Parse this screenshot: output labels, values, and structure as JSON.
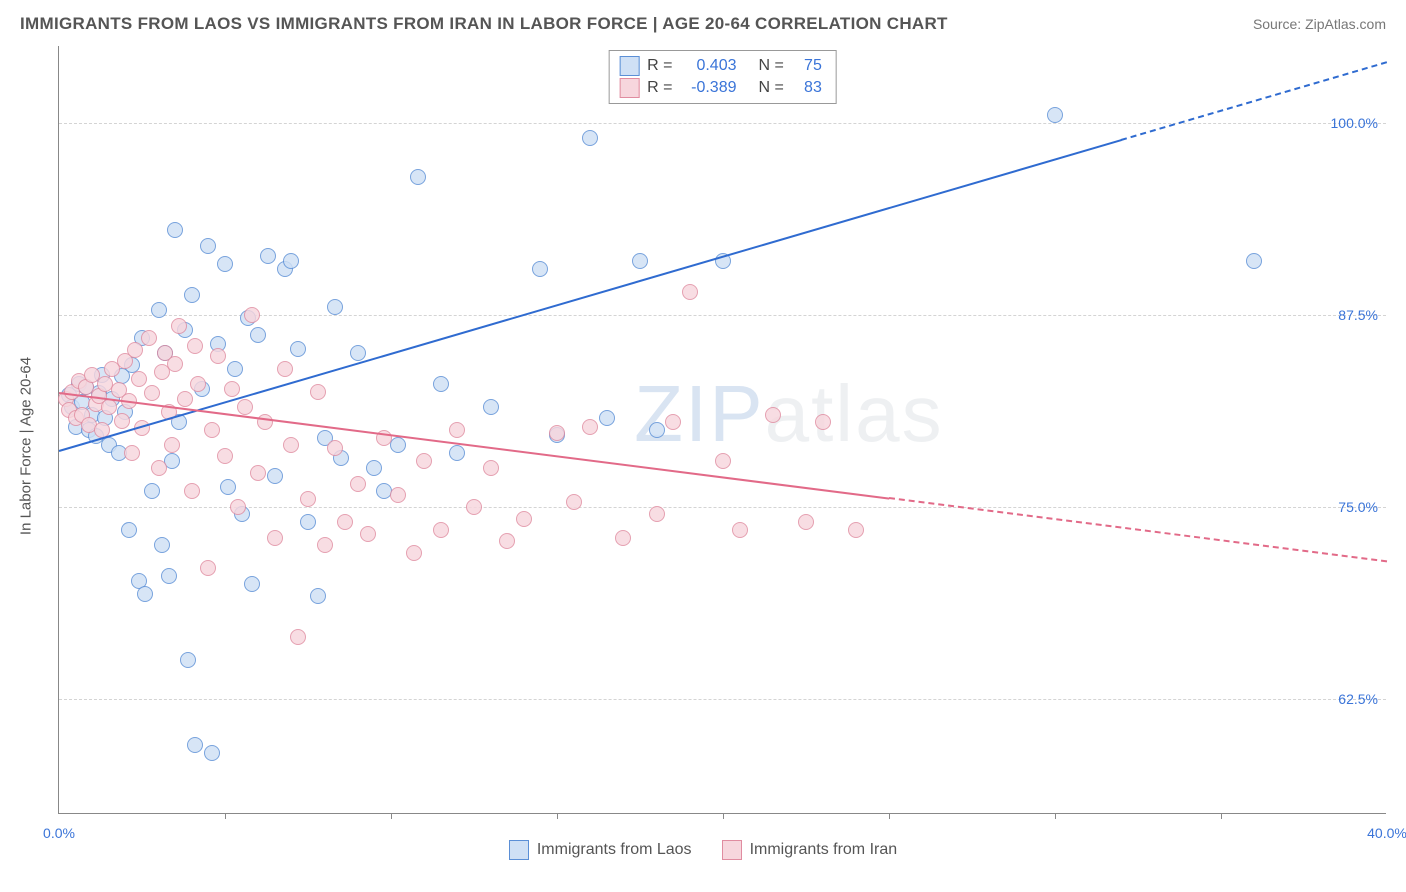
{
  "title": "IMMIGRANTS FROM LAOS VS IMMIGRANTS FROM IRAN IN LABOR FORCE | AGE 20-64 CORRELATION CHART",
  "source": "Source: ZipAtlas.com",
  "watermark": "ZIPatlas",
  "ylabel": "In Labor Force | Age 20-64",
  "chart": {
    "type": "scatter",
    "xlim": [
      0,
      40
    ],
    "ylim": [
      55,
      105
    ],
    "xticks": [
      0,
      40
    ],
    "xtick_labels": [
      "0.0%",
      "40.0%"
    ],
    "xtick_marks": [
      5,
      10,
      15,
      20,
      25,
      30,
      35
    ],
    "yticks": [
      62.5,
      75.0,
      87.5,
      100.0
    ],
    "ytick_labels": [
      "62.5%",
      "75.0%",
      "87.5%",
      "100.0%"
    ],
    "grid_color": "#d4d4d4",
    "axis_color": "#888888",
    "background": "#ffffff",
    "marker_radius": 8,
    "marker_stroke_width": 1.2,
    "line_width": 2.4
  },
  "series": [
    {
      "id": "laos",
      "label": "Immigrants from Laos",
      "fill": "#cfe0f5",
      "stroke": "#5b8fd6",
      "line_color": "#2f6bd0",
      "R": "0.403",
      "N": "75",
      "trend": {
        "x1": 0,
        "y1": 78.7,
        "x2": 40,
        "y2": 104.0,
        "extrapolate_from_x": 32
      },
      "points": [
        [
          0.3,
          82.3
        ],
        [
          0.4,
          81.5
        ],
        [
          0.5,
          80.2
        ],
        [
          0.6,
          83.0
        ],
        [
          0.7,
          81.8
        ],
        [
          0.8,
          82.8
        ],
        [
          0.9,
          80.0
        ],
        [
          1.0,
          81.0
        ],
        [
          1.1,
          79.6
        ],
        [
          1.2,
          82.4
        ],
        [
          1.3,
          83.6
        ],
        [
          1.4,
          80.8
        ],
        [
          1.5,
          79.0
        ],
        [
          1.6,
          82.0
        ],
        [
          1.8,
          78.5
        ],
        [
          1.9,
          83.5
        ],
        [
          2.0,
          81.2
        ],
        [
          2.1,
          73.5
        ],
        [
          2.2,
          84.2
        ],
        [
          2.4,
          70.2
        ],
        [
          2.5,
          86.0
        ],
        [
          2.6,
          69.3
        ],
        [
          2.8,
          76.0
        ],
        [
          3.0,
          87.8
        ],
        [
          3.1,
          72.5
        ],
        [
          3.2,
          85.0
        ],
        [
          3.3,
          70.5
        ],
        [
          3.4,
          78.0
        ],
        [
          3.5,
          93.0
        ],
        [
          3.6,
          80.5
        ],
        [
          3.8,
          86.5
        ],
        [
          3.9,
          65.0
        ],
        [
          4.0,
          88.8
        ],
        [
          4.1,
          59.5
        ],
        [
          4.3,
          82.7
        ],
        [
          4.5,
          92.0
        ],
        [
          4.6,
          59.0
        ],
        [
          4.8,
          85.6
        ],
        [
          5.0,
          90.8
        ],
        [
          5.1,
          76.3
        ],
        [
          5.3,
          84.0
        ],
        [
          5.5,
          74.5
        ],
        [
          5.7,
          87.3
        ],
        [
          5.8,
          70.0
        ],
        [
          6.0,
          86.2
        ],
        [
          6.3,
          91.3
        ],
        [
          6.5,
          77.0
        ],
        [
          6.8,
          90.5
        ],
        [
          7.0,
          91.0
        ],
        [
          7.2,
          85.3
        ],
        [
          7.5,
          74.0
        ],
        [
          7.8,
          69.2
        ],
        [
          8.0,
          79.5
        ],
        [
          8.3,
          88.0
        ],
        [
          8.5,
          78.2
        ],
        [
          9.0,
          85.0
        ],
        [
          9.5,
          77.5
        ],
        [
          9.8,
          76.0
        ],
        [
          10.2,
          79.0
        ],
        [
          10.8,
          96.5
        ],
        [
          11.5,
          83.0
        ],
        [
          12.0,
          78.5
        ],
        [
          13.0,
          81.5
        ],
        [
          14.5,
          90.5
        ],
        [
          15.0,
          79.7
        ],
        [
          16.0,
          99.0
        ],
        [
          16.5,
          80.8
        ],
        [
          17.5,
          91.0
        ],
        [
          18.0,
          80.0
        ],
        [
          20.0,
          91.0
        ],
        [
          30.0,
          100.5
        ],
        [
          36.0,
          91.0
        ]
      ]
    },
    {
      "id": "iran",
      "label": "Immigrants from Iran",
      "fill": "#f7d6dd",
      "stroke": "#e08ca0",
      "line_color": "#e26a88",
      "R": "-0.389",
      "N": "83",
      "trend": {
        "x1": 0,
        "y1": 82.5,
        "x2": 40,
        "y2": 71.5,
        "extrapolate_from_x": 25
      },
      "points": [
        [
          0.2,
          82.0
        ],
        [
          0.3,
          81.3
        ],
        [
          0.4,
          82.5
        ],
        [
          0.5,
          80.8
        ],
        [
          0.6,
          83.2
        ],
        [
          0.7,
          81.0
        ],
        [
          0.8,
          82.8
        ],
        [
          0.9,
          80.3
        ],
        [
          1.0,
          83.6
        ],
        [
          1.1,
          81.7
        ],
        [
          1.2,
          82.2
        ],
        [
          1.3,
          80.0
        ],
        [
          1.4,
          83.0
        ],
        [
          1.5,
          81.5
        ],
        [
          1.6,
          84.0
        ],
        [
          1.8,
          82.6
        ],
        [
          1.9,
          80.6
        ],
        [
          2.0,
          84.5
        ],
        [
          2.1,
          81.9
        ],
        [
          2.2,
          78.5
        ],
        [
          2.3,
          85.2
        ],
        [
          2.4,
          83.3
        ],
        [
          2.5,
          80.1
        ],
        [
          2.7,
          86.0
        ],
        [
          2.8,
          82.4
        ],
        [
          3.0,
          77.5
        ],
        [
          3.1,
          83.8
        ],
        [
          3.2,
          85.0
        ],
        [
          3.3,
          81.2
        ],
        [
          3.4,
          79.0
        ],
        [
          3.5,
          84.3
        ],
        [
          3.6,
          86.8
        ],
        [
          3.8,
          82.0
        ],
        [
          4.0,
          76.0
        ],
        [
          4.1,
          85.5
        ],
        [
          4.2,
          83.0
        ],
        [
          4.5,
          71.0
        ],
        [
          4.6,
          80.0
        ],
        [
          4.8,
          84.8
        ],
        [
          5.0,
          78.3
        ],
        [
          5.2,
          82.7
        ],
        [
          5.4,
          75.0
        ],
        [
          5.6,
          81.5
        ],
        [
          5.8,
          87.5
        ],
        [
          6.0,
          77.2
        ],
        [
          6.2,
          80.5
        ],
        [
          6.5,
          73.0
        ],
        [
          6.8,
          84.0
        ],
        [
          7.0,
          79.0
        ],
        [
          7.2,
          66.5
        ],
        [
          7.5,
          75.5
        ],
        [
          7.8,
          82.5
        ],
        [
          8.0,
          72.5
        ],
        [
          8.3,
          78.8
        ],
        [
          8.6,
          74.0
        ],
        [
          9.0,
          76.5
        ],
        [
          9.3,
          73.2
        ],
        [
          9.8,
          79.5
        ],
        [
          10.2,
          75.8
        ],
        [
          10.7,
          72.0
        ],
        [
          11.0,
          78.0
        ],
        [
          11.5,
          73.5
        ],
        [
          12.0,
          80.0
        ],
        [
          12.5,
          75.0
        ],
        [
          13.0,
          77.5
        ],
        [
          13.5,
          72.8
        ],
        [
          14.0,
          74.2
        ],
        [
          15.0,
          79.8
        ],
        [
          15.5,
          75.3
        ],
        [
          16.0,
          80.2
        ],
        [
          17.0,
          73.0
        ],
        [
          18.0,
          74.5
        ],
        [
          18.5,
          80.5
        ],
        [
          19.0,
          89.0
        ],
        [
          20.0,
          78.0
        ],
        [
          20.5,
          73.5
        ],
        [
          21.5,
          81.0
        ],
        [
          22.5,
          74.0
        ],
        [
          23.0,
          80.5
        ],
        [
          24.0,
          73.5
        ]
      ]
    }
  ],
  "legend_top": {
    "R_label": "R =",
    "N_label": "N ="
  }
}
